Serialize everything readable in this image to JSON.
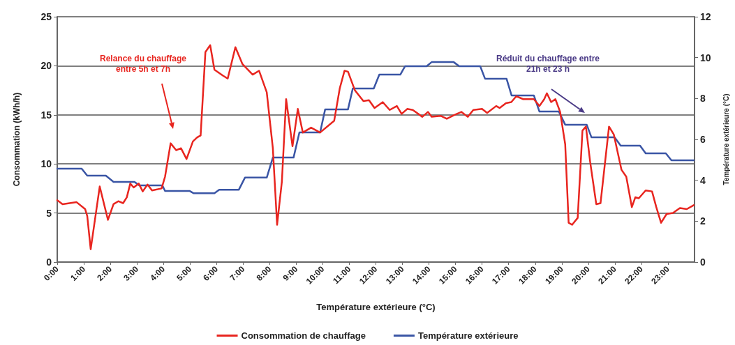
{
  "chart_data": {
    "type": "line",
    "xlabel": "Température extérieure (°C)",
    "ylabel": "Consommation (kWh/h)",
    "y2label": "Température extérieure (°C)",
    "xlim": [
      0,
      24
    ],
    "xticks": [
      {
        "value": 0,
        "label": "0:00"
      },
      {
        "value": 1,
        "label": "1:00"
      },
      {
        "value": 2,
        "label": "2:00"
      },
      {
        "value": 3,
        "label": "3:00"
      },
      {
        "value": 4,
        "label": "4:00"
      },
      {
        "value": 5,
        "label": "5:00"
      },
      {
        "value": 6,
        "label": "6:00"
      },
      {
        "value": 7,
        "label": "7:00"
      },
      {
        "value": 8,
        "label": "8:00"
      },
      {
        "value": 9,
        "label": "9:00"
      },
      {
        "value": 10,
        "label": "10:00"
      },
      {
        "value": 11,
        "label": "11:00"
      },
      {
        "value": 12,
        "label": "12:00"
      },
      {
        "value": 13,
        "label": "13:00"
      },
      {
        "value": 14,
        "label": "14:00"
      },
      {
        "value": 15,
        "label": "15:00"
      },
      {
        "value": 16,
        "label": "16:00"
      },
      {
        "value": 17,
        "label": "17:00"
      },
      {
        "value": 18,
        "label": "18:00"
      },
      {
        "value": 19,
        "label": "19:00"
      },
      {
        "value": 20,
        "label": "20:00"
      },
      {
        "value": 21,
        "label": "21:00"
      },
      {
        "value": 22,
        "label": "22:00"
      },
      {
        "value": 23,
        "label": "23:00"
      }
    ],
    "ylim": [
      0,
      25
    ],
    "yticks": [
      0,
      5,
      10,
      15,
      20,
      25
    ],
    "y2lim": [
      0,
      12
    ],
    "y2ticks": [
      0,
      2,
      4,
      6,
      8,
      10,
      12
    ],
    "grid": "y",
    "legend": "bottom",
    "marker": "none",
    "line_style": "solid",
    "annotations": [
      "Relance du chauffage entre 5h et 7h",
      "Réduit du chauffage entre 21h et 23 h"
    ],
    "series": [
      {
        "name": "Consommation de chauffage",
        "color": "#e8251f",
        "x": [
          0,
          0.2,
          0.73,
          1.05,
          1.13,
          1.26,
          1.6,
          1.91,
          2.12,
          2.3,
          2.48,
          2.62,
          2.75,
          2.88,
          3.07,
          3.22,
          3.4,
          3.57,
          3.93,
          4.06,
          4.27,
          4.48,
          4.66,
          4.87,
          5.11,
          5.27,
          5.4,
          5.58,
          5.76,
          5.92,
          6.24,
          6.42,
          6.71,
          6.97,
          7.36,
          7.6,
          7.89,
          8.12,
          8.28,
          8.46,
          8.62,
          8.86,
          9.06,
          9.25,
          9.56,
          9.9,
          10.43,
          10.64,
          10.82,
          10.95,
          11.21,
          11.53,
          11.74,
          11.95,
          12.26,
          12.52,
          12.79,
          12.97,
          13.18,
          13.39,
          13.75,
          13.96,
          14.1,
          14.44,
          14.67,
          14.96,
          15.22,
          15.46,
          15.67,
          16.0,
          16.19,
          16.53,
          16.66,
          16.9,
          17.1,
          17.29,
          17.55,
          17.95,
          18.16,
          18.34,
          18.44,
          18.6,
          18.76,
          18.94,
          19.13,
          19.26,
          19.39,
          19.6,
          19.78,
          19.91,
          20.07,
          20.3,
          20.46,
          20.78,
          20.96,
          21.25,
          21.43,
          21.64,
          21.77,
          21.9,
          22.16,
          22.4,
          22.56,
          22.74,
          22.95,
          23.19,
          23.45,
          23.71,
          23.97
        ],
        "values": [
          6.3,
          5.9,
          6.1,
          5.4,
          4.7,
          1.3,
          7.7,
          4.3,
          5.9,
          6.2,
          6.0,
          6.6,
          8.0,
          7.6,
          8.0,
          7.2,
          7.9,
          7.3,
          7.5,
          8.7,
          12.1,
          11.4,
          11.6,
          10.5,
          12.3,
          12.7,
          12.9,
          21.4,
          22.1,
          19.6,
          19.0,
          18.7,
          21.9,
          20.2,
          19.1,
          19.5,
          17.3,
          11.6,
          3.8,
          8.2,
          16.6,
          11.8,
          15.6,
          13.2,
          13.7,
          13.2,
          14.4,
          17.7,
          19.5,
          19.4,
          17.5,
          16.4,
          16.5,
          15.7,
          16.3,
          15.5,
          15.9,
          15.1,
          15.6,
          15.5,
          14.8,
          15.3,
          14.8,
          14.9,
          14.6,
          15.0,
          15.3,
          14.8,
          15.5,
          15.6,
          15.2,
          15.9,
          15.7,
          16.2,
          16.3,
          16.9,
          16.6,
          16.6,
          15.9,
          16.6,
          17.2,
          16.3,
          16.6,
          15.3,
          12.0,
          4.0,
          3.8,
          4.5,
          13.4,
          13.8,
          10.2,
          5.9,
          6.0,
          13.8,
          13.0,
          9.4,
          8.7,
          5.6,
          6.6,
          6.5,
          7.3,
          7.2,
          5.6,
          4.0,
          4.9,
          5.0,
          5.5,
          5.4,
          5.8
        ]
      },
      {
        "name": "Température extérieure",
        "color": "#3a55a5",
        "axis": "y2",
        "x": [
          0,
          0.92,
          1.13,
          1.83,
          2.12,
          2.91,
          3.09,
          3.96,
          4.06,
          4.98,
          5.13,
          5.92,
          6.1,
          6.84,
          7.07,
          7.89,
          8.12,
          8.9,
          9.12,
          9.9,
          10.09,
          10.95,
          11.13,
          11.92,
          12.13,
          12.92,
          13.1,
          13.91,
          14.1,
          14.93,
          15.14,
          15.93,
          16.11,
          16.92,
          17.11,
          17.95,
          18.16,
          18.89,
          19.13,
          19.94,
          20.12,
          20.99,
          21.22,
          21.95,
          22.16,
          22.92,
          23.13,
          23.97
        ],
        "values": [
          4.57,
          4.57,
          4.23,
          4.23,
          3.92,
          3.92,
          3.75,
          3.75,
          3.48,
          3.48,
          3.37,
          3.37,
          3.54,
          3.54,
          4.13,
          4.13,
          5.11,
          5.11,
          6.34,
          6.34,
          7.47,
          7.47,
          8.49,
          8.49,
          9.17,
          9.17,
          9.58,
          9.58,
          9.78,
          9.78,
          9.58,
          9.58,
          8.97,
          8.97,
          8.15,
          8.15,
          7.36,
          7.36,
          6.72,
          6.72,
          6.1,
          6.1,
          5.69,
          5.69,
          5.32,
          5.32,
          4.98,
          4.98
        ]
      }
    ]
  }
}
